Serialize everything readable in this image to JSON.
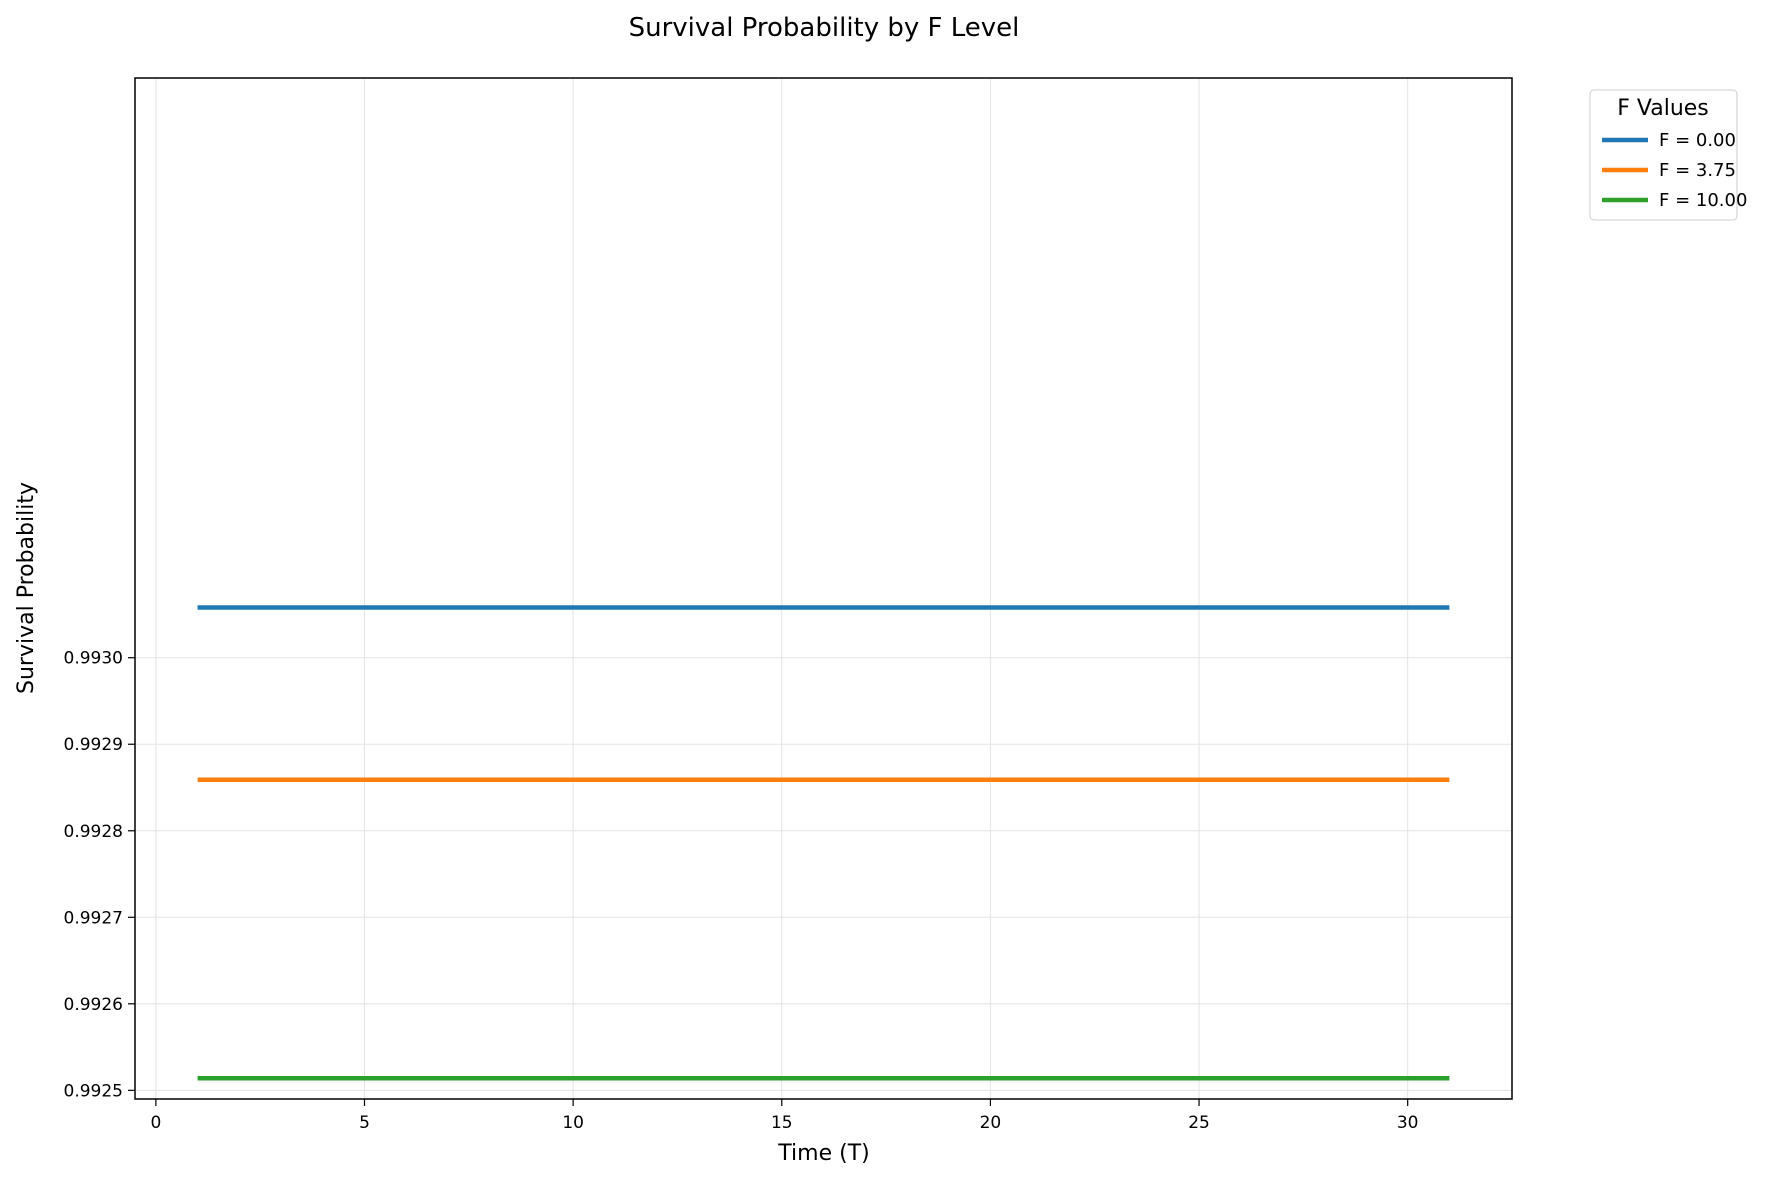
{
  "chart_data": {
    "type": "line",
    "title": "Survival Probability by F Level",
    "xlabel": "Time (T)",
    "ylabel": "Survival Probability",
    "xlim": [
      -0.5,
      32.5
    ],
    "ylim": [
      0.99249,
      0.99367
    ],
    "xticks": [
      0,
      5,
      10,
      15,
      20,
      25,
      30
    ],
    "xtick_labels": [
      "0",
      "5",
      "10",
      "15",
      "20",
      "25",
      "30"
    ],
    "yticks": [
      0.9925,
      0.9926,
      0.9927,
      0.9928,
      0.9929,
      0.993
    ],
    "ytick_labels": [
      "0.9925",
      "0.9926",
      "0.9927",
      "0.9928",
      "0.9929",
      "0.9930"
    ],
    "grid": true,
    "legend": {
      "title": "F Values",
      "position": "outside-top-right"
    },
    "x": [
      1,
      31
    ],
    "series": [
      {
        "name": "F = 0.00",
        "color": "#1f77b4",
        "values": [
          0.993058,
          0.993058
        ]
      },
      {
        "name": "F = 3.75",
        "color": "#ff7f0e",
        "values": [
          0.992859,
          0.992859
        ]
      },
      {
        "name": "F = 10.00",
        "color": "#2ca02c",
        "values": [
          0.992514,
          0.992514
        ]
      }
    ]
  }
}
